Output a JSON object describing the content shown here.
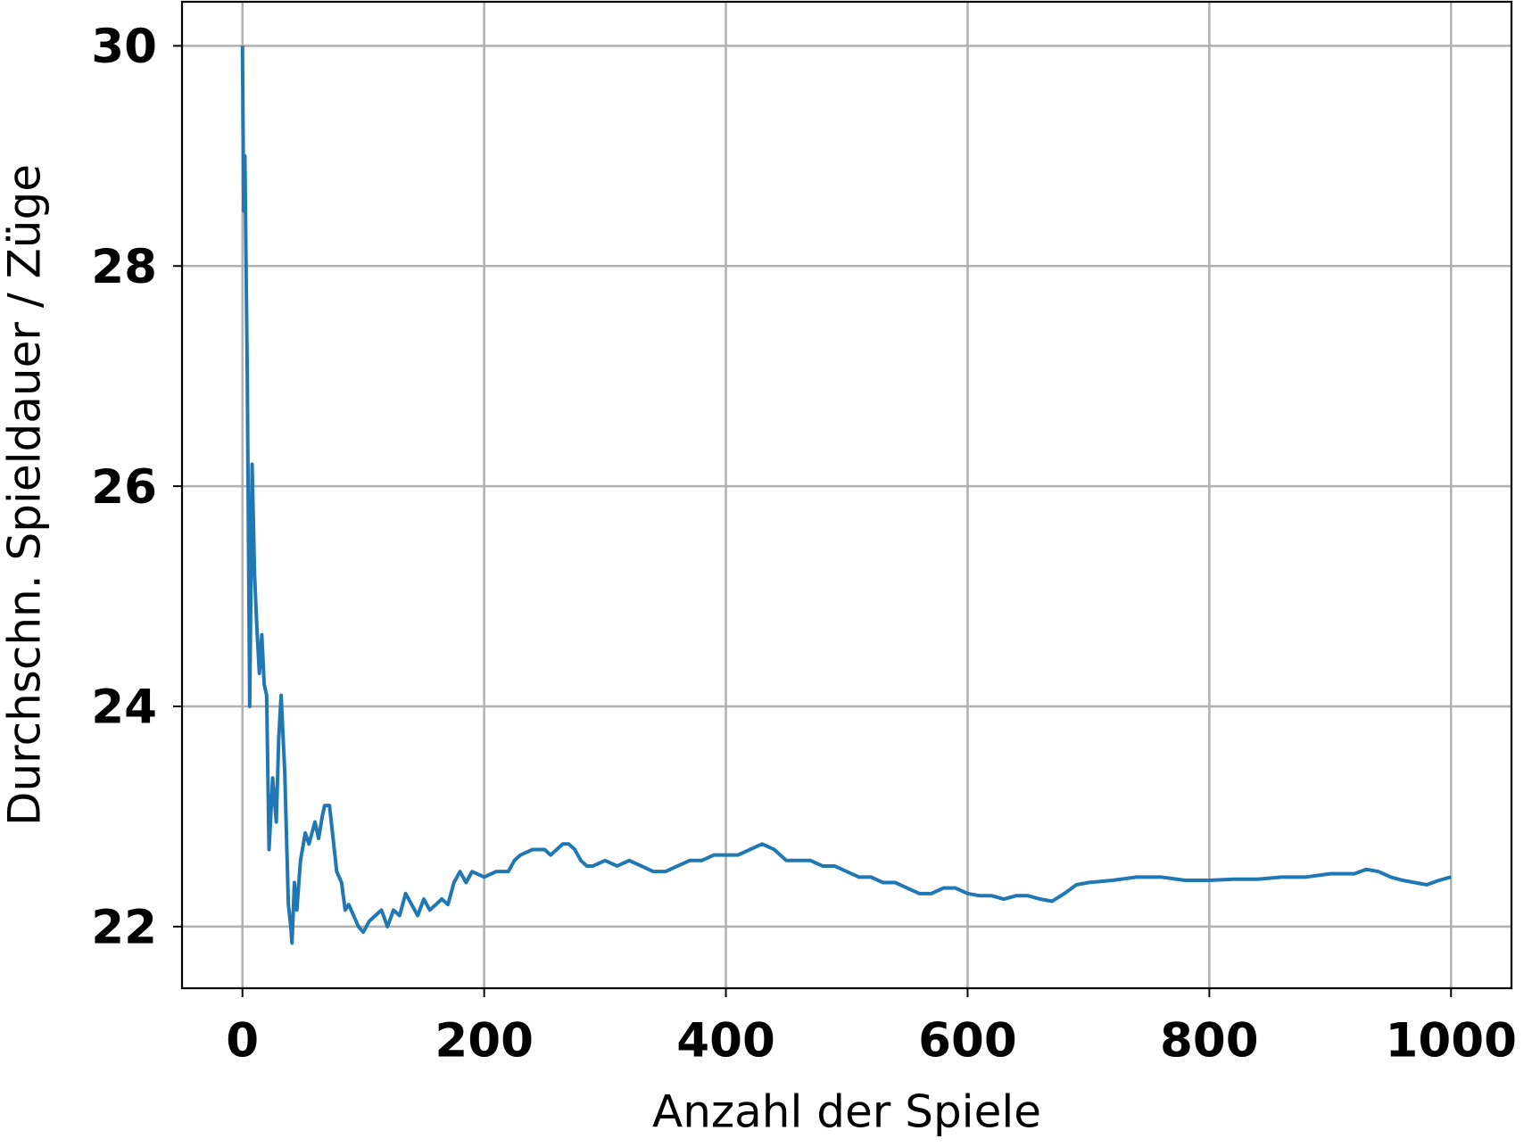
{
  "chart_data": {
    "type": "line",
    "x_label": "Anzahl der Spiele",
    "y_label": "Durchschn. Spieldauer / Züge",
    "x": [
      0,
      1,
      2,
      4,
      6,
      8,
      10,
      12,
      14,
      16,
      18,
      20,
      22,
      25,
      28,
      30,
      32,
      35,
      38,
      40,
      41,
      43,
      45,
      48,
      52,
      55,
      60,
      63,
      66,
      68,
      72,
      75,
      78,
      82,
      85,
      88,
      92,
      96,
      100,
      105,
      110,
      115,
      120,
      125,
      130,
      135,
      140,
      145,
      150,
      155,
      160,
      165,
      170,
      175,
      180,
      185,
      190,
      200,
      210,
      220,
      225,
      230,
      240,
      250,
      255,
      260,
      265,
      270,
      275,
      280,
      285,
      290,
      300,
      310,
      320,
      330,
      340,
      350,
      360,
      370,
      380,
      390,
      400,
      410,
      420,
      430,
      440,
      450,
      460,
      470,
      480,
      490,
      500,
      510,
      520,
      530,
      540,
      550,
      560,
      570,
      580,
      590,
      600,
      610,
      620,
      630,
      640,
      650,
      660,
      670,
      680,
      690,
      700,
      720,
      740,
      760,
      780,
      800,
      820,
      840,
      860,
      880,
      900,
      920,
      930,
      940,
      950,
      960,
      970,
      980,
      990,
      1000
    ],
    "series": [
      {
        "name": "Durchschn. Spieldauer",
        "color": "#1f77b4",
        "values": [
          30,
          28.5,
          29,
          27,
          24.0,
          26.2,
          25.2,
          24.7,
          24.3,
          24.65,
          24.2,
          24.1,
          22.7,
          23.35,
          22.95,
          23.7,
          24.1,
          23.4,
          22.2,
          22.0,
          21.85,
          22.4,
          22.15,
          22.6,
          22.85,
          22.75,
          22.95,
          22.8,
          23.0,
          23.1,
          23.1,
          22.8,
          22.5,
          22.4,
          22.15,
          22.2,
          22.1,
          22.0,
          21.95,
          22.05,
          22.1,
          22.15,
          22.0,
          22.15,
          22.1,
          22.3,
          22.2,
          22.1,
          22.25,
          22.15,
          22.2,
          22.25,
          22.2,
          22.4,
          22.5,
          22.4,
          22.5,
          22.45,
          22.5,
          22.5,
          22.6,
          22.65,
          22.7,
          22.7,
          22.65,
          22.7,
          22.75,
          22.75,
          22.7,
          22.6,
          22.55,
          22.55,
          22.6,
          22.55,
          22.6,
          22.55,
          22.5,
          22.5,
          22.55,
          22.6,
          22.6,
          22.65,
          22.65,
          22.65,
          22.7,
          22.75,
          22.7,
          22.6,
          22.6,
          22.6,
          22.55,
          22.55,
          22.5,
          22.45,
          22.45,
          22.4,
          22.4,
          22.35,
          22.3,
          22.3,
          22.35,
          22.35,
          22.3,
          22.28,
          22.28,
          22.25,
          22.28,
          22.28,
          22.25,
          22.23,
          22.3,
          22.38,
          22.4,
          22.42,
          22.45,
          22.45,
          22.42,
          22.42,
          22.43,
          22.43,
          22.45,
          22.45,
          22.48,
          22.48,
          22.52,
          22.5,
          22.45,
          22.42,
          22.4,
          22.38,
          22.42,
          22.45
        ]
      }
    ],
    "xlim": [
      -50,
      1050
    ],
    "ylim": [
      21.44,
      30.4
    ],
    "xticks": [
      0,
      200,
      400,
      600,
      800,
      1000
    ],
    "yticks": [
      22,
      24,
      26,
      28,
      30
    ],
    "grid": true
  }
}
